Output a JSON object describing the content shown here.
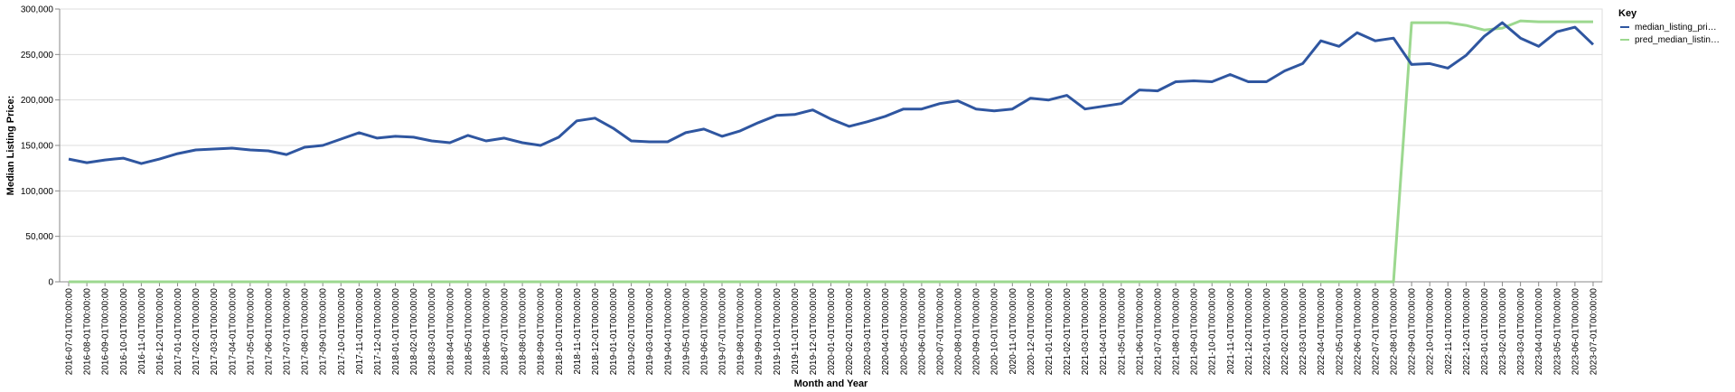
{
  "chart_data": {
    "type": "line",
    "xlabel": "Month and Year",
    "ylabel": "Median Listing Price:",
    "ylim": [
      0,
      300000
    ],
    "y_ticks": [
      "0",
      "50,000",
      "100,000",
      "150,000",
      "200,000",
      "250,000",
      "300,000"
    ],
    "grid": true,
    "legend": {
      "title": "Key",
      "position": "right"
    },
    "categories": [
      "2016-07-01T00:00:00",
      "2016-08-01T00:00:00",
      "2016-09-01T00:00:00",
      "2016-10-01T00:00:00",
      "2016-11-01T00:00:00",
      "2016-12-01T00:00:00",
      "2017-01-01T00:00:00",
      "2017-02-01T00:00:00",
      "2017-03-01T00:00:00",
      "2017-04-01T00:00:00",
      "2017-05-01T00:00:00",
      "2017-06-01T00:00:00",
      "2017-07-01T00:00:00",
      "2017-08-01T00:00:00",
      "2017-09-01T00:00:00",
      "2017-10-01T00:00:00",
      "2017-11-01T00:00:00",
      "2017-12-01T00:00:00",
      "2018-01-01T00:00:00",
      "2018-02-01T00:00:00",
      "2018-03-01T00:00:00",
      "2018-04-01T00:00:00",
      "2018-05-01T00:00:00",
      "2018-06-01T00:00:00",
      "2018-07-01T00:00:00",
      "2018-08-01T00:00:00",
      "2018-09-01T00:00:00",
      "2018-10-01T00:00:00",
      "2018-11-01T00:00:00",
      "2018-12-01T00:00:00",
      "2019-01-01T00:00:00",
      "2019-02-01T00:00:00",
      "2019-03-01T00:00:00",
      "2019-04-01T00:00:00",
      "2019-05-01T00:00:00",
      "2019-06-01T00:00:00",
      "2019-07-01T00:00:00",
      "2019-08-01T00:00:00",
      "2019-09-01T00:00:00",
      "2019-10-01T00:00:00",
      "2019-11-01T00:00:00",
      "2019-12-01T00:00:00",
      "2020-01-01T00:00:00",
      "2020-02-01T00:00:00",
      "2020-03-01T00:00:00",
      "2020-04-01T00:00:00",
      "2020-05-01T00:00:00",
      "2020-06-01T00:00:00",
      "2020-07-01T00:00:00",
      "2020-08-01T00:00:00",
      "2020-09-01T00:00:00",
      "2020-10-01T00:00:00",
      "2020-11-01T00:00:00",
      "2020-12-01T00:00:00",
      "2021-01-01T00:00:00",
      "2021-02-01T00:00:00",
      "2021-03-01T00:00:00",
      "2021-04-01T00:00:00",
      "2021-05-01T00:00:00",
      "2021-06-01T00:00:00",
      "2021-07-01T00:00:00",
      "2021-08-01T00:00:00",
      "2021-09-01T00:00:00",
      "2021-10-01T00:00:00",
      "2021-11-01T00:00:00",
      "2021-12-01T00:00:00",
      "2022-01-01T00:00:00",
      "2022-02-01T00:00:00",
      "2022-03-01T00:00:00",
      "2022-04-01T00:00:00",
      "2022-05-01T00:00:00",
      "2022-06-01T00:00:00",
      "2022-07-01T00:00:00",
      "2022-08-01T00:00:00",
      "2022-09-01T00:00:00",
      "2022-10-01T00:00:00",
      "2022-11-01T00:00:00",
      "2022-12-01T00:00:00",
      "2023-01-01T00:00:00",
      "2023-02-01T00:00:00",
      "2023-03-01T00:00:00",
      "2023-04-01T00:00:00",
      "2023-05-01T00:00:00",
      "2023-06-01T00:00:00",
      "2023-07-01T00:00:00"
    ],
    "series": [
      {
        "name": "median_listing_pri…",
        "color": "#2f56a0",
        "values": [
          135000,
          131000,
          134000,
          136000,
          130000,
          135000,
          141000,
          145000,
          146000,
          147000,
          145000,
          144000,
          140000,
          148000,
          150000,
          157000,
          164000,
          158000,
          160000,
          159000,
          155000,
          153000,
          161000,
          155000,
          158000,
          153000,
          150000,
          159000,
          177000,
          180000,
          169000,
          155000,
          154000,
          154000,
          164000,
          168000,
          160000,
          166000,
          175000,
          183000,
          184000,
          189000,
          179000,
          171000,
          176000,
          182000,
          190000,
          190000,
          196000,
          199000,
          190000,
          188000,
          190000,
          202000,
          200000,
          205000,
          190000,
          193000,
          196000,
          211000,
          210000,
          220000,
          221000,
          220000,
          228000,
          220000,
          220000,
          232000,
          240000,
          265000,
          259000,
          274000,
          265000,
          268000,
          239000,
          240000,
          235000,
          249000,
          270000,
          285000,
          268000,
          259000,
          275000,
          280000,
          261000
        ]
      },
      {
        "name": "pred_median_listin…",
        "color": "#9cd88f",
        "values": [
          0,
          0,
          0,
          0,
          0,
          0,
          0,
          0,
          0,
          0,
          0,
          0,
          0,
          0,
          0,
          0,
          0,
          0,
          0,
          0,
          0,
          0,
          0,
          0,
          0,
          0,
          0,
          0,
          0,
          0,
          0,
          0,
          0,
          0,
          0,
          0,
          0,
          0,
          0,
          0,
          0,
          0,
          0,
          0,
          0,
          0,
          0,
          0,
          0,
          0,
          0,
          0,
          0,
          0,
          0,
          0,
          0,
          0,
          0,
          0,
          0,
          0,
          0,
          0,
          0,
          0,
          0,
          0,
          0,
          0,
          0,
          0,
          0,
          0,
          285000,
          285000,
          285000,
          282000,
          277000,
          279000,
          287000,
          286000,
          286000,
          286000,
          286000
        ]
      }
    ]
  }
}
